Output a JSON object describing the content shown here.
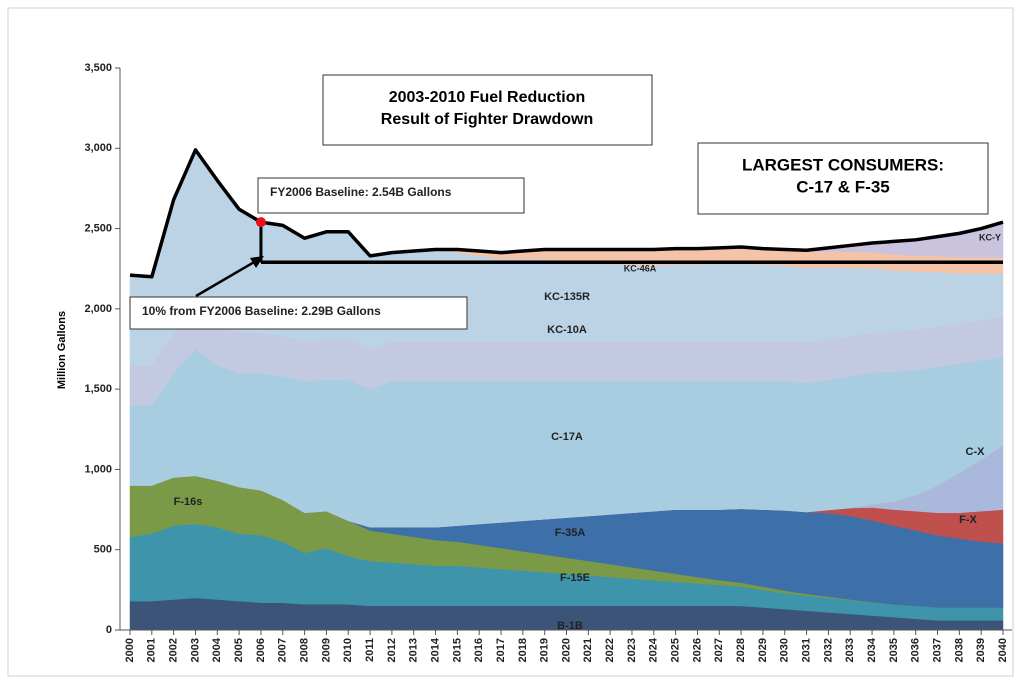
{
  "chart_data": {
    "type": "stacked_area",
    "title": [
      "2003-2010 Fuel Reduction",
      "Result of Fighter Drawdown"
    ],
    "consumers_note": [
      "LARGEST CONSUMERS:",
      "C-17 & F-35"
    ],
    "baseline_note": "FY2006 Baseline:  2.54B Gallons",
    "target_note": "10% from FY2006 Baseline:  2.29B Gallons",
    "ylabel": "Million Gallons",
    "categories": [
      "2000",
      "2001",
      "2002",
      "2003",
      "2004",
      "2005",
      "2006",
      "2007",
      "2008",
      "2009",
      "2010",
      "2011",
      "2012",
      "2013",
      "2014",
      "2015",
      "2016",
      "2017",
      "2018",
      "2019",
      "2020",
      "2021",
      "2022",
      "2023",
      "2024",
      "2025",
      "2026",
      "2027",
      "2028",
      "2029",
      "2030",
      "2031",
      "2032",
      "2033",
      "2034",
      "2035",
      "2036",
      "2037",
      "2038",
      "2039",
      "2040"
    ],
    "ylim": [
      0,
      3500
    ],
    "yticks": [
      0,
      500,
      {
        "value": 1000,
        "label": "1,000"
      },
      {
        "value": 1500,
        "label": "1,500"
      },
      {
        "value": 2000,
        "label": "2,000"
      },
      {
        "value": 2500,
        "label": "2,500"
      },
      {
        "value": 3000,
        "label": "3,000"
      },
      {
        "value": 3500,
        "label": "3,500"
      }
    ],
    "series": [
      {
        "name": "B-1B",
        "color": "#3b5478",
        "values": [
          180,
          180,
          190,
          200,
          190,
          180,
          170,
          170,
          160,
          160,
          160,
          150,
          150,
          150,
          150,
          150,
          150,
          150,
          150,
          150,
          150,
          150,
          150,
          150,
          150,
          150,
          150,
          150,
          150,
          140,
          130,
          120,
          110,
          100,
          90,
          80,
          70,
          60,
          60,
          60,
          60
        ]
      },
      {
        "name": "F-15E",
        "color": "#3e94ab",
        "values": [
          400,
          420,
          460,
          460,
          450,
          420,
          420,
          380,
          320,
          350,
          300,
          280,
          270,
          260,
          250,
          250,
          240,
          230,
          220,
          210,
          200,
          190,
          180,
          170,
          160,
          150,
          140,
          130,
          120,
          110,
          100,
          95,
          90,
          85,
          80,
          80,
          80,
          80,
          80,
          80,
          80
        ]
      },
      {
        "name": "F-16s",
        "color": "#7a9a48",
        "values": [
          320,
          300,
          300,
          300,
          290,
          290,
          280,
          260,
          250,
          230,
          220,
          190,
          180,
          170,
          160,
          150,
          140,
          130,
          120,
          110,
          100,
          90,
          80,
          70,
          60,
          50,
          40,
          30,
          25,
          20,
          15,
          10,
          8,
          5,
          3,
          0,
          0,
          0,
          0,
          0,
          0
        ]
      },
      {
        "name": "F-35A",
        "color": "#3d6fa8",
        "values": [
          0,
          0,
          0,
          0,
          0,
          0,
          0,
          0,
          0,
          0,
          0,
          20,
          40,
          60,
          80,
          100,
          130,
          160,
          190,
          220,
          250,
          280,
          310,
          340,
          370,
          400,
          420,
          440,
          460,
          480,
          500,
          510,
          520,
          520,
          510,
          490,
          470,
          450,
          430,
          410,
          400
        ]
      },
      {
        "name": "F-X",
        "color": "#c0504d",
        "values": [
          0,
          0,
          0,
          0,
          0,
          0,
          0,
          0,
          0,
          0,
          0,
          0,
          0,
          0,
          0,
          0,
          0,
          0,
          0,
          0,
          0,
          0,
          0,
          0,
          0,
          0,
          0,
          0,
          0,
          0,
          0,
          0,
          20,
          50,
          80,
          100,
          120,
          140,
          160,
          190,
          210
        ]
      },
      {
        "name": "C-X",
        "color": "#aab8dc",
        "values": [
          0,
          0,
          0,
          0,
          0,
          0,
          0,
          0,
          0,
          0,
          0,
          0,
          0,
          0,
          0,
          0,
          0,
          0,
          0,
          0,
          0,
          0,
          0,
          0,
          0,
          0,
          0,
          0,
          0,
          0,
          0,
          0,
          0,
          0,
          20,
          50,
          100,
          170,
          250,
          320,
          400
        ]
      },
      {
        "name": "C-17A",
        "color": "#a9cde0",
        "values": [
          500,
          500,
          650,
          790,
          720,
          710,
          730,
          770,
          820,
          820,
          880,
          860,
          910,
          910,
          910,
          900,
          890,
          880,
          870,
          860,
          850,
          840,
          830,
          820,
          810,
          800,
          800,
          800,
          795,
          800,
          805,
          805,
          810,
          820,
          820,
          810,
          780,
          740,
          680,
          620,
          550
        ]
      },
      {
        "name": "KC-10A",
        "color": "#c4c9e2",
        "values": [
          250,
          250,
          250,
          250,
          250,
          250,
          250,
          250,
          250,
          250,
          250,
          250,
          250,
          250,
          250,
          250,
          250,
          250,
          250,
          250,
          250,
          250,
          250,
          250,
          250,
          250,
          250,
          250,
          250,
          250,
          250,
          250,
          250,
          250,
          250,
          250,
          250,
          250,
          250,
          250,
          250
        ]
      },
      {
        "name": "KC-135R",
        "color": "#bcd3e6",
        "values": [
          560,
          550,
          830,
          990,
          900,
          770,
          690,
          690,
          640,
          670,
          670,
          580,
          550,
          560,
          570,
          550,
          530,
          510,
          510,
          510,
          500,
          490,
          480,
          470,
          470,
          475,
          475,
          480,
          485,
          475,
          470,
          465,
          450,
          425,
          400,
          380,
          360,
          340,
          310,
          290,
          270
        ]
      },
      {
        "name": "KC-46A",
        "color": "#f5c3a8",
        "values": [
          0,
          0,
          0,
          0,
          0,
          0,
          0,
          0,
          0,
          0,
          0,
          0,
          0,
          0,
          0,
          20,
          30,
          40,
          50,
          60,
          70,
          80,
          90,
          100,
          100,
          100,
          100,
          100,
          100,
          100,
          100,
          100,
          100,
          100,
          100,
          100,
          100,
          100,
          100,
          100,
          100
        ]
      },
      {
        "name": "KC-Y",
        "color": "#c9c3de",
        "values": [
          0,
          0,
          0,
          0,
          0,
          0,
          0,
          0,
          0,
          0,
          0,
          0,
          0,
          0,
          0,
          0,
          0,
          0,
          0,
          0,
          0,
          0,
          0,
          0,
          0,
          0,
          0,
          0,
          0,
          0,
          0,
          10,
          20,
          40,
          60,
          80,
          100,
          120,
          150,
          180,
          220
        ]
      }
    ],
    "total": {
      "color": "#000000",
      "values": [
        2210,
        2200,
        2680,
        2990,
        2800,
        2620,
        2540,
        2520,
        2440,
        2480,
        2480,
        2330,
        2350,
        2360,
        2370,
        2370,
        2360,
        2350,
        2360,
        2370,
        2370,
        2370,
        2370,
        2370,
        2370,
        2375,
        2375,
        2380,
        2385,
        2375,
        2370,
        2365,
        2380,
        2395,
        2410,
        2420,
        2430,
        2450,
        2470,
        2500,
        2540
      ]
    },
    "marker": {
      "x": "2006",
      "value": 2540,
      "color": "#e8101a"
    },
    "reference_line": {
      "value": 2290,
      "color": "#000000"
    }
  }
}
